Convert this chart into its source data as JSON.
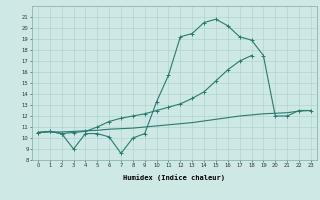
{
  "xlabel": "Humidex (Indice chaleur)",
  "x_values": [
    0,
    1,
    2,
    3,
    4,
    5,
    6,
    7,
    8,
    9,
    10,
    11,
    12,
    13,
    14,
    15,
    16,
    17,
    18,
    19,
    20,
    21,
    22,
    23
  ],
  "line1": [
    10.5,
    10.6,
    10.4,
    9.0,
    10.4,
    10.4,
    10.1,
    8.6,
    10.0,
    10.4,
    13.3,
    15.7,
    19.2,
    19.5,
    20.5,
    20.8,
    20.2,
    19.2,
    18.9,
    17.5,
    12.0,
    12.0,
    12.5,
    12.5
  ],
  "line2": [
    10.5,
    10.6,
    10.4,
    10.5,
    10.6,
    11.0,
    11.5,
    11.8,
    12.0,
    12.2,
    12.5,
    12.8,
    13.1,
    13.6,
    14.2,
    15.2,
    16.2,
    17.0,
    17.5,
    null,
    null,
    null,
    null,
    null
  ],
  "line3": [
    10.5,
    10.55,
    10.55,
    10.6,
    10.65,
    10.7,
    10.8,
    10.85,
    10.9,
    11.0,
    11.1,
    11.2,
    11.3,
    11.4,
    11.55,
    11.7,
    11.85,
    12.0,
    12.1,
    12.2,
    12.25,
    12.3,
    12.45,
    12.5
  ],
  "line_color": "#2a7a6f",
  "bg_color": "#cde8e5",
  "grid_color": "#aacfcc",
  "ylim": [
    8,
    22
  ],
  "xlim": [
    -0.5,
    23.5
  ],
  "yticks": [
    8,
    9,
    10,
    11,
    12,
    13,
    14,
    15,
    16,
    17,
    18,
    19,
    20,
    21
  ],
  "xticks": [
    0,
    1,
    2,
    3,
    4,
    5,
    6,
    7,
    8,
    9,
    10,
    11,
    12,
    13,
    14,
    15,
    16,
    17,
    18,
    19,
    20,
    21,
    22,
    23
  ]
}
